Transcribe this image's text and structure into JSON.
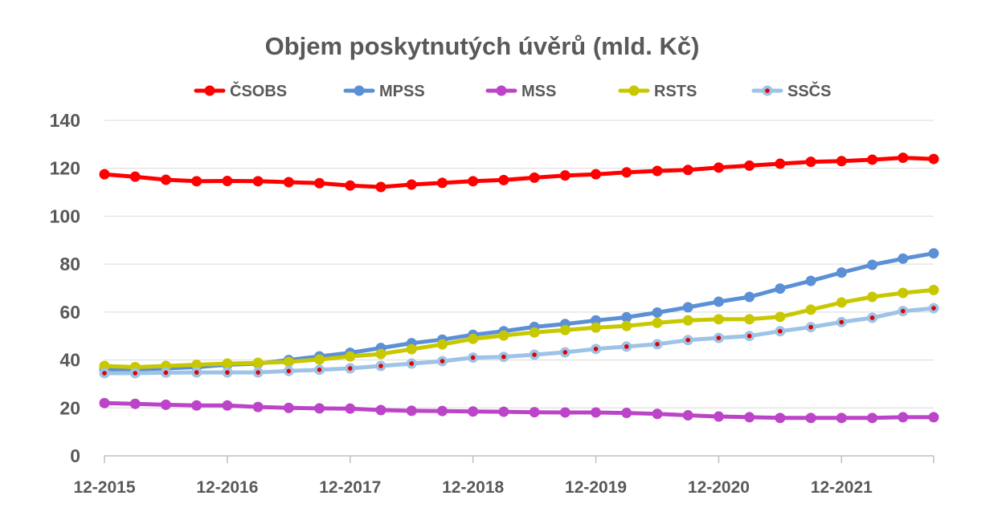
{
  "chart_data": {
    "type": "line",
    "title": "Objem poskytnutých úvěrů (mld. Kč)",
    "xlabel": "",
    "ylabel": "",
    "ylim": [
      0,
      140
    ],
    "yticks": [
      0,
      20,
      40,
      60,
      80,
      100,
      120,
      140
    ],
    "x": [
      "12-2015",
      "03-2016",
      "06-2016",
      "09-2016",
      "12-2016",
      "03-2017",
      "06-2017",
      "09-2017",
      "12-2017",
      "03-2018",
      "06-2018",
      "09-2018",
      "12-2018",
      "03-2019",
      "06-2019",
      "09-2019",
      "12-2019",
      "03-2020",
      "06-2020",
      "09-2020",
      "12-2020",
      "03-2021",
      "06-2021",
      "09-2021",
      "12-2021",
      "03-2022",
      "06-2022",
      "09-2022"
    ],
    "xtick_labels": [
      "12-2015",
      "12-2016",
      "12-2017",
      "12-2018",
      "12-2019",
      "12-2020",
      "12-2021"
    ],
    "grid": true,
    "legend_position": "top",
    "series": [
      {
        "name": "ČSOBS",
        "color": "#ff0000",
        "marker_inner": "#ff0000",
        "values": [
          117.5,
          116.5,
          115.2,
          114.6,
          114.7,
          114.6,
          114.2,
          113.8,
          112.8,
          112.2,
          113.2,
          113.9,
          114.6,
          115.1,
          116.1,
          117.0,
          117.5,
          118.3,
          118.9,
          119.3,
          120.3,
          121.1,
          121.9,
          122.7,
          123.0,
          123.6,
          124.4,
          123.9
        ]
      },
      {
        "name": "MPSS",
        "color": "#5b8fd6",
        "marker_inner": "#5b8fd6",
        "values": [
          36.0,
          36.0,
          36.5,
          37.0,
          38.0,
          38.5,
          40.0,
          41.5,
          43.0,
          45.0,
          47.0,
          48.5,
          50.5,
          52.0,
          53.8,
          55.0,
          56.5,
          57.8,
          59.8,
          62.0,
          64.3,
          66.3,
          69.8,
          73.0,
          76.5,
          79.7,
          82.3,
          84.5
        ]
      },
      {
        "name": "MSS",
        "color": "#bb44c8",
        "marker_inner": "#bb44c8",
        "values": [
          22.0,
          21.7,
          21.3,
          21.0,
          21.0,
          20.4,
          20.0,
          19.8,
          19.7,
          19.1,
          18.8,
          18.7,
          18.5,
          18.4,
          18.2,
          18.1,
          18.1,
          17.9,
          17.5,
          16.9,
          16.4,
          16.1,
          15.8,
          15.8,
          15.8,
          15.8,
          16.1,
          16.1
        ]
      },
      {
        "name": "RSTS",
        "color": "#c8c800",
        "marker_inner": "#c8c800",
        "values": [
          37.5,
          37.0,
          37.5,
          38.0,
          38.5,
          38.8,
          39.2,
          40.2,
          41.5,
          42.5,
          44.5,
          46.5,
          48.8,
          50.2,
          51.5,
          52.5,
          53.5,
          54.2,
          55.5,
          56.5,
          57.0,
          57.0,
          58.0,
          61.0,
          64.0,
          66.3,
          68.0,
          69.2
        ]
      },
      {
        "name": "SSČS",
        "color": "#9dc3e6",
        "marker_inner": "#e00000",
        "values": [
          34.5,
          34.5,
          34.7,
          34.8,
          34.8,
          34.8,
          35.4,
          35.9,
          36.5,
          37.5,
          38.5,
          39.5,
          41.0,
          41.3,
          42.2,
          43.2,
          44.6,
          45.6,
          46.6,
          48.3,
          49.2,
          50.0,
          52.0,
          53.7,
          55.8,
          57.6,
          60.4,
          61.6
        ]
      }
    ]
  }
}
